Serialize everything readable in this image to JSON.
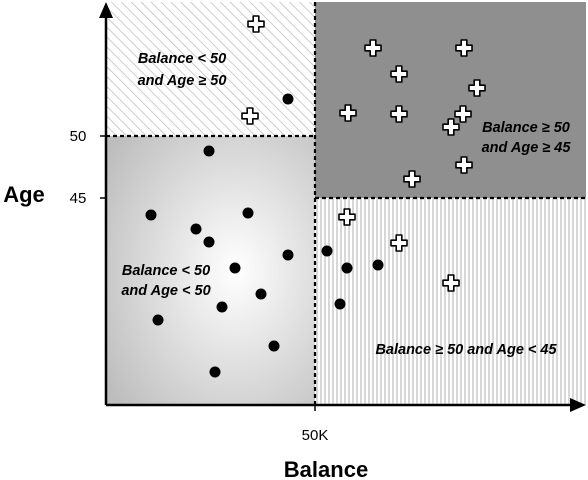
{
  "axes": {
    "x_title": "Balance",
    "y_title": "Age",
    "x_tick": "50K",
    "y_ticks": [
      "50",
      "45"
    ]
  },
  "regions": {
    "top_left": [
      "Balance < 50",
      "and Age ≥ 50"
    ],
    "top_right": [
      "Balance ≥ 50",
      "and Age ≥ 45"
    ],
    "bottom_left": [
      "Balance < 50",
      "and Age < 50"
    ],
    "bottom_right": [
      "Balance ≥ 50 and Age < 45"
    ]
  },
  "colors": {
    "top_left_hatch": "#b8b8b8",
    "top_right_fill": "#8f8f8f",
    "bottom_right_stripe": "#c4c4c4",
    "bottom_left_gradient_center": "#ffffff",
    "bottom_left_gradient_edge": "#bdbdbd",
    "marker_dot": "#000000",
    "marker_cross": "#ffffff"
  },
  "marker_types": [
    "dot",
    "cross"
  ]
}
